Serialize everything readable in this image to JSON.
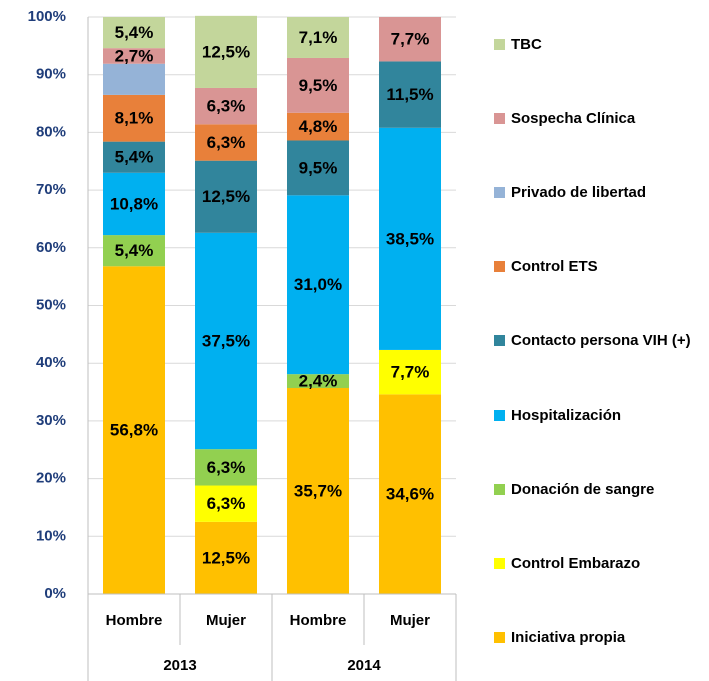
{
  "chart_data": {
    "type": "stacked_bar",
    "categories": [
      "Hombre",
      "Mujer",
      "Hombre",
      "Mujer"
    ],
    "groups": [
      "2013",
      "2014"
    ],
    "ylim": [
      0,
      100
    ],
    "yticks": [
      {
        "value": 0,
        "label": "0%"
      },
      {
        "value": 10,
        "label": "10%"
      },
      {
        "value": 20,
        "label": "20%"
      },
      {
        "value": 30,
        "label": "30%"
      },
      {
        "value": 40,
        "label": "40%"
      },
      {
        "value": 50,
        "label": "50%"
      },
      {
        "value": 60,
        "label": "60%"
      },
      {
        "value": 70,
        "label": "70%"
      },
      {
        "value": 80,
        "label": "80%"
      },
      {
        "value": 90,
        "label": "90%"
      },
      {
        "value": 100,
        "label": "100%"
      }
    ],
    "grid": true,
    "legend": "right",
    "series": [
      {
        "name": "Iniciativa propia",
        "color": "#FFC000",
        "values": [
          56.8,
          12.5,
          35.7,
          34.6
        ],
        "value_labels": [
          "56,8%",
          "12,5%",
          "35,7%",
          "34,6%"
        ]
      },
      {
        "name": "Control Embarazo",
        "color": "#FFFF00",
        "values": [
          null,
          6.3,
          null,
          7.7
        ],
        "value_labels": [
          null,
          "6,3%",
          null,
          "7,7%"
        ]
      },
      {
        "name": "Donación de sangre",
        "color": "#92D050",
        "values": [
          5.4,
          6.3,
          2.4,
          null
        ],
        "value_labels": [
          "5,4%",
          "6,3%",
          "2,4%",
          null
        ]
      },
      {
        "name": "Hospitalización",
        "color": "#00B0F0",
        "values": [
          10.8,
          37.5,
          31.0,
          38.5
        ],
        "value_labels": [
          "10,8%",
          "37,5%",
          "31,0%",
          "38,5%"
        ]
      },
      {
        "name": "Contacto persona VIH (+)",
        "color": "#31859C",
        "values": [
          5.4,
          12.5,
          9.5,
          11.5
        ],
        "value_labels": [
          "5,4%",
          "12,5%",
          "9,5%",
          "11,5%"
        ]
      },
      {
        "name": "Control ETS",
        "color": "#E8803A",
        "values": [
          8.1,
          6.3,
          4.8,
          null
        ],
        "value_labels": [
          "8,1%",
          "6,3%",
          "4,8%",
          null
        ]
      },
      {
        "name": "Privado de libertad",
        "color": "#95B3D7",
        "values": [
          5.4,
          null,
          null,
          null
        ],
        "value_labels": [
          null,
          null,
          null,
          null
        ]
      },
      {
        "name": "Sospecha Clínica",
        "color": "#D99594",
        "values": [
          2.7,
          6.3,
          9.5,
          7.7
        ],
        "value_labels": [
          "2,7%",
          "6,3%",
          "9,5%",
          "7,7%"
        ]
      },
      {
        "name": "TBC",
        "color": "#C3D69B",
        "values": [
          5.4,
          12.5,
          7.1,
          null
        ],
        "value_labels": [
          "5,4%",
          "12,5%",
          "7,1%",
          null
        ]
      }
    ]
  }
}
